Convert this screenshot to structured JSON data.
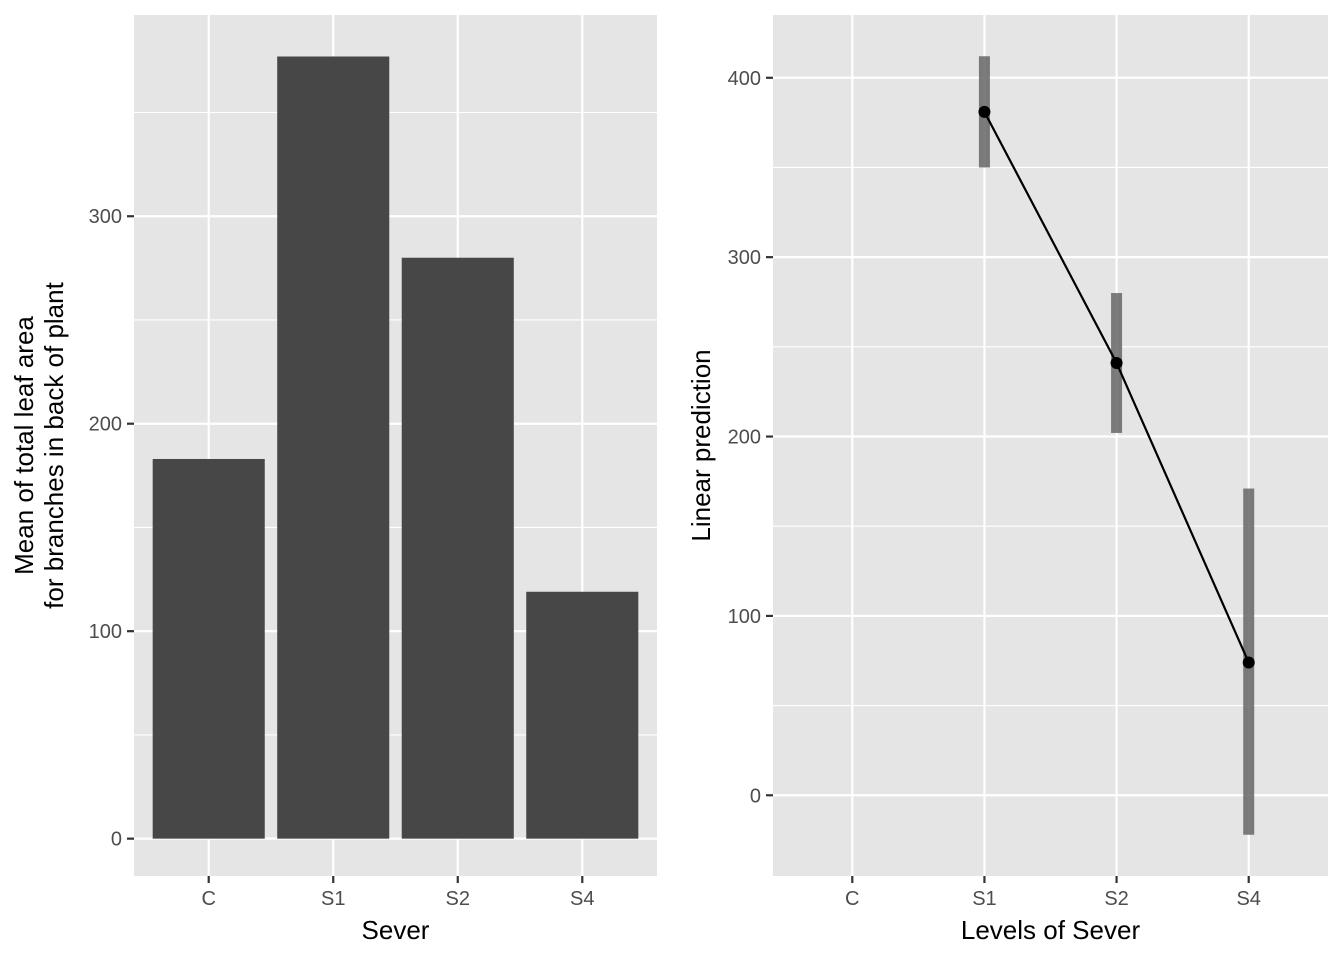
{
  "chart_data": [
    {
      "type": "bar",
      "categories": [
        "C",
        "S1",
        "S2",
        "S4"
      ],
      "values": [
        183,
        377,
        280,
        119
      ],
      "xlabel": "Sever",
      "ylabel": [
        "Mean of total leaf area",
        "for branches in back of plant"
      ],
      "ylim": [
        -18,
        397
      ],
      "yticks": [
        0,
        100,
        200,
        300
      ],
      "grid": true
    },
    {
      "type": "line",
      "categories": [
        "C",
        "S1",
        "S2",
        "S4"
      ],
      "points": [
        {
          "x": "S1",
          "y": 381,
          "lower": 350,
          "upper": 412
        },
        {
          "x": "S2",
          "y": 241,
          "lower": 202,
          "upper": 280
        },
        {
          "x": "S4",
          "y": 74,
          "lower": -22,
          "upper": 171
        }
      ],
      "xlabel": "Levels of Sever",
      "ylabel": "Linear prediction",
      "ylim": [
        -45,
        435
      ],
      "yticks": [
        0,
        100,
        200,
        300,
        400
      ],
      "grid": true
    }
  ]
}
